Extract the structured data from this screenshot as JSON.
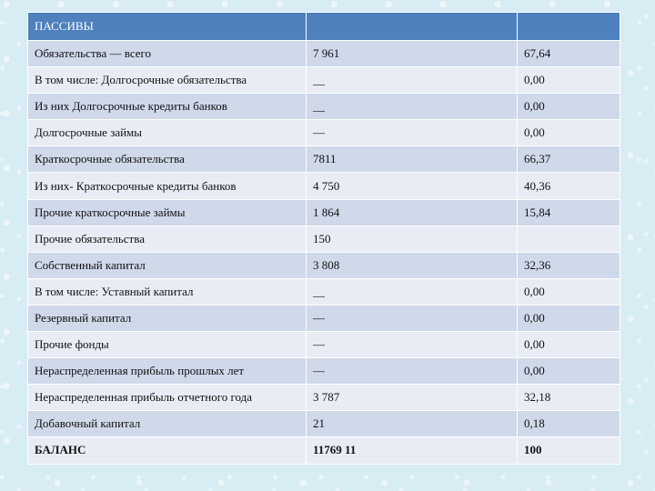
{
  "table": {
    "header": [
      "ПАССИВЫ",
      "",
      ""
    ],
    "rows": [
      [
        "Обязательства — всего",
        "7 961",
        "67,64"
      ],
      [
        "В том числе: Долгосрочные обязательства",
        "__",
        "0,00"
      ],
      [
        "Из них Долгосрочные кредиты банков",
        "__",
        "0,00"
      ],
      [
        "Долгосрочные займы",
        "—",
        "0,00"
      ],
      [
        "Краткосрочные обязательства",
        "7811",
        "66,37"
      ],
      [
        "Из них- Краткосрочные кредиты банков",
        "4 750",
        "40,36"
      ],
      [
        "Прочие краткосрочные займы",
        "1 864",
        "15,84"
      ],
      [
        "Прочие обязательства",
        "150",
        ""
      ],
      [
        "Собственный капитал",
        "3 808",
        "32,36"
      ],
      [
        "В том числе: Уставный капитал",
        "__",
        "0,00"
      ],
      [
        "Резервный капитал",
        "—",
        "0,00"
      ],
      [
        "Прочие фонды",
        "—",
        "0,00"
      ],
      [
        "Нераспределенная прибыль прошлых лет",
        "—",
        "0,00"
      ],
      [
        "Нераспределенная прибыль отчетного года",
        "3 787",
        "32,18"
      ],
      [
        "Добавочный капитал",
        "21",
        "0,18"
      ],
      [
        "БАЛАНС",
        "11769 11",
        "100"
      ]
    ]
  },
  "colors": {
    "header_bg": "#4e81bd",
    "row_odd_bg": "#cfd9ea",
    "row_even_bg": "#e8edf5",
    "page_bg": "#d7edf3"
  }
}
